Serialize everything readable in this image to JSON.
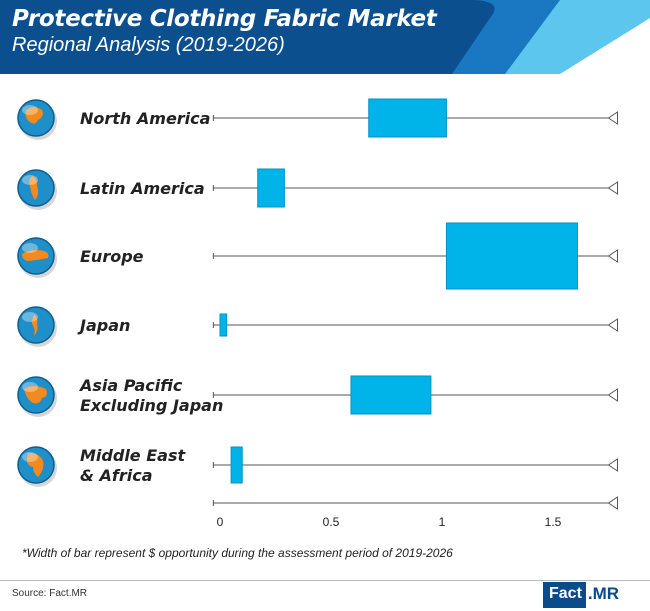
{
  "title": "Protective Clothing Fabric Market",
  "subtitle": "Regional Analysis (2019-2026)",
  "footnote": "*Width of bar represent $ opportunity during the assessment period of 2019-2026",
  "source": "Source: Fact.MR",
  "logo": {
    "fact": "Fact",
    "mr": ".MR"
  },
  "colors": {
    "header_dark": "#0b4f8f",
    "header_mid": "#1a78c2",
    "header_light": "#5cc6ee",
    "bar": "#00b4ea",
    "bar_border": "#0092c4",
    "line": "#555555",
    "globe_ocean": "#1f8fc9",
    "globe_land": "#f28a1e"
  },
  "chart_data": {
    "type": "bar",
    "orientation": "horizontal floating range",
    "categories": [
      "North America",
      "Latin America",
      "Europe",
      "Japan",
      "Asia Pacific Excluding Japan",
      "Middle East & Africa"
    ],
    "labels": [
      [
        "North America"
      ],
      [
        "Latin America"
      ],
      [
        "Europe"
      ],
      [
        "Japan"
      ],
      [
        "Asia Pacific",
        "Excluding Japan"
      ],
      [
        "Middle East",
        "& Africa"
      ]
    ],
    "ranges": [
      [
        0.67,
        1.02
      ],
      [
        0.17,
        0.29
      ],
      [
        1.02,
        1.61
      ],
      [
        0.0,
        0.03
      ],
      [
        0.59,
        0.95
      ],
      [
        0.05,
        0.1
      ]
    ],
    "x_ticks": [
      0,
      0.5,
      1,
      1.5
    ],
    "x_tick_labels": [
      "0",
      "0.5",
      "1",
      "1.5"
    ],
    "xlim": [
      -0.03,
      1.75
    ],
    "grid": false,
    "legend": "none"
  }
}
